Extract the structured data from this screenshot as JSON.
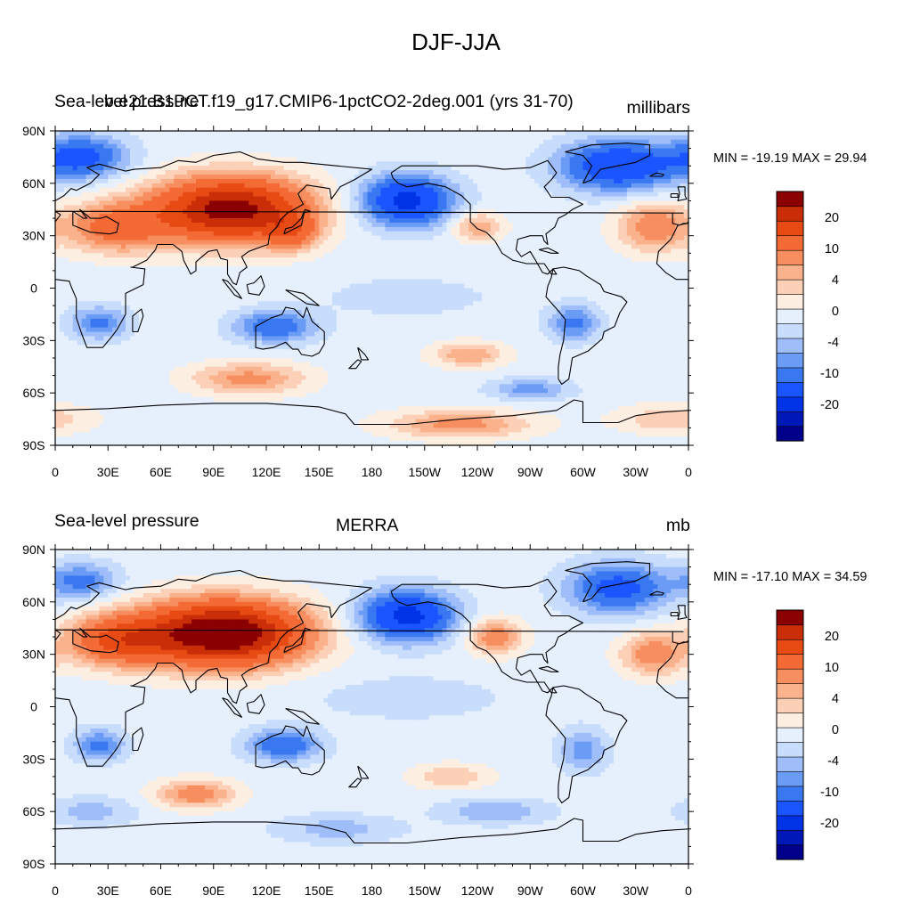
{
  "main_title": "DJF-JJA",
  "lon_ticks": [
    "0",
    "30E",
    "60E",
    "90E",
    "120E",
    "150E",
    "180",
    "150W",
    "120W",
    "90W",
    "60W",
    "30W",
    "0"
  ],
  "lat_ticks": [
    "90N",
    "60N",
    "30N",
    "0",
    "30S",
    "60S",
    "90S"
  ],
  "panels": [
    {
      "left_title": "Sea-level pressure",
      "center_title": "b.e21.B1PCT.f19_g17.CMIP6-1pctCO2-2deg.001 (yrs 31-70)",
      "right_title": "millibars",
      "minmax": "MIN = -19.19 MAX =  29.94",
      "colorbar_labels": [
        "20",
        "10",
        "4",
        "0",
        "-4",
        "-10",
        "-20"
      ]
    },
    {
      "left_title": "Sea-level pressure",
      "center_title": "MERRA",
      "right_title": "mb",
      "minmax": "MIN = -17.10 MAX =  34.59",
      "colorbar_labels": [
        "20",
        "10",
        "4",
        "0",
        "-4",
        "-10",
        "-20"
      ]
    }
  ],
  "palette": [
    "#00008b",
    "#0018b8",
    "#0032e6",
    "#1a55ff",
    "#3a78f2",
    "#6a9bf5",
    "#9ebdf9",
    "#c8dcfb",
    "#e6f0fd",
    "#fdeee2",
    "#fcd0b7",
    "#fab28c",
    "#f78e5f",
    "#f36a35",
    "#e84a14",
    "#c92e08",
    "#8b0000"
  ],
  "colorbar_levels": [
    -35,
    -25,
    -15,
    -8,
    -5,
    -2,
    0,
    2,
    5,
    8,
    15,
    25,
    35
  ],
  "chart_data": [
    {
      "type": "heatmap",
      "title": "DJF-JJA",
      "series_label": "b.e21.B1PCT.f19_g17.CMIP6-1pctCO2-2deg.001 (yrs 31-70)",
      "variable": "Sea-level pressure",
      "units": "millibars",
      "min": -19.19,
      "max": 29.94,
      "x_ticks": [
        "0",
        "30E",
        "60E",
        "90E",
        "120E",
        "150E",
        "180",
        "150W",
        "120W",
        "90W",
        "60W",
        "30W",
        "0"
      ],
      "y_ticks": [
        "90N",
        "60N",
        "30N",
        "0",
        "30S",
        "60S",
        "90S"
      ],
      "xlim": [
        0,
        360
      ],
      "ylim": [
        -90,
        90
      ],
      "features": [
        {
          "lon": 100,
          "lat": 45,
          "dlon": 42,
          "dlat": 18,
          "value": 28
        },
        {
          "lon": 35,
          "lat": 35,
          "dlon": 28,
          "dlat": 14,
          "value": 12
        },
        {
          "lon": 135,
          "lat": 32,
          "dlon": 14,
          "dlat": 10,
          "value": 9
        },
        {
          "lon": 200,
          "lat": 50,
          "dlon": 25,
          "dlat": 14,
          "value": -17
        },
        {
          "lon": 240,
          "lat": 35,
          "dlon": 14,
          "dlat": 8,
          "value": 7
        },
        {
          "lon": 340,
          "lat": 35,
          "dlon": 20,
          "dlat": 14,
          "value": 9
        },
        {
          "lon": 320,
          "lat": 70,
          "dlon": 32,
          "dlat": 14,
          "value": -15
        },
        {
          "lon": 15,
          "lat": 75,
          "dlon": 25,
          "dlat": 12,
          "value": -12
        },
        {
          "lon": 125,
          "lat": -22,
          "dlon": 22,
          "dlat": 9,
          "value": -10
        },
        {
          "lon": 25,
          "lat": -20,
          "dlon": 16,
          "dlat": 9,
          "value": -8
        },
        {
          "lon": 295,
          "lat": -20,
          "dlon": 14,
          "dlat": 10,
          "value": -8
        },
        {
          "lon": 110,
          "lat": -52,
          "dlon": 32,
          "dlat": 9,
          "value": 8
        },
        {
          "lon": 235,
          "lat": -38,
          "dlon": 20,
          "dlat": 7,
          "value": 7
        },
        {
          "lon": 230,
          "lat": -78,
          "dlon": 40,
          "dlat": 8,
          "value": 8
        },
        {
          "lon": 350,
          "lat": -75,
          "dlon": 30,
          "dlat": 8,
          "value": 5
        },
        {
          "lon": 270,
          "lat": -58,
          "dlon": 22,
          "dlat": 6,
          "value": -6
        },
        {
          "lon": 200,
          "lat": -5,
          "dlon": 50,
          "dlat": 12,
          "value": -2
        }
      ]
    },
    {
      "type": "heatmap",
      "title": "DJF-JJA",
      "series_label": "MERRA",
      "variable": "Sea-level pressure",
      "units": "mb",
      "min": -17.1,
      "max": 34.59,
      "x_ticks": [
        "0",
        "30E",
        "60E",
        "90E",
        "120E",
        "150E",
        "180",
        "150W",
        "120W",
        "90W",
        "60W",
        "30W",
        "0"
      ],
      "y_ticks": [
        "90N",
        "60N",
        "30N",
        "0",
        "30S",
        "60S",
        "90S"
      ],
      "xlim": [
        0,
        360
      ],
      "ylim": [
        -90,
        90
      ],
      "features": [
        {
          "lon": 95,
          "lat": 42,
          "dlon": 45,
          "dlat": 18,
          "value": 32
        },
        {
          "lon": 35,
          "lat": 38,
          "dlon": 28,
          "dlat": 14,
          "value": 14
        },
        {
          "lon": 200,
          "lat": 52,
          "dlon": 26,
          "dlat": 14,
          "value": -17
        },
        {
          "lon": 250,
          "lat": 40,
          "dlon": 15,
          "dlat": 10,
          "value": 9
        },
        {
          "lon": 340,
          "lat": 30,
          "dlon": 18,
          "dlat": 12,
          "value": 9
        },
        {
          "lon": 320,
          "lat": 68,
          "dlon": 28,
          "dlat": 14,
          "value": -12
        },
        {
          "lon": 15,
          "lat": 72,
          "dlon": 20,
          "dlat": 10,
          "value": -8
        },
        {
          "lon": 130,
          "lat": -22,
          "dlon": 20,
          "dlat": 9,
          "value": -10
        },
        {
          "lon": 25,
          "lat": -22,
          "dlon": 14,
          "dlat": 9,
          "value": -8
        },
        {
          "lon": 300,
          "lat": -25,
          "dlon": 14,
          "dlat": 12,
          "value": -6
        },
        {
          "lon": 80,
          "lat": -50,
          "dlon": 22,
          "dlat": 8,
          "value": 9
        },
        {
          "lon": 225,
          "lat": -40,
          "dlon": 22,
          "dlat": 7,
          "value": 5
        },
        {
          "lon": 250,
          "lat": -60,
          "dlon": 30,
          "dlat": 7,
          "value": -5
        },
        {
          "lon": 160,
          "lat": -70,
          "dlon": 35,
          "dlat": 8,
          "value": -4
        },
        {
          "lon": 20,
          "lat": -60,
          "dlon": 25,
          "dlat": 8,
          "value": -4
        },
        {
          "lon": 200,
          "lat": 5,
          "dlon": 60,
          "dlat": 14,
          "value": -2
        }
      ]
    }
  ]
}
